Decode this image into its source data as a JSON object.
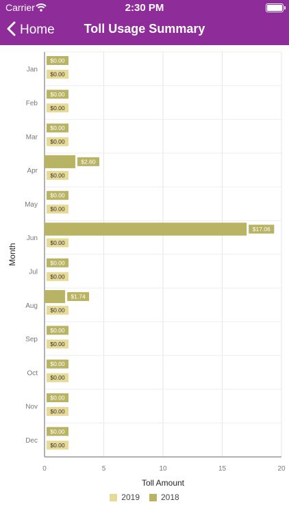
{
  "status_bar": {
    "carrier": "Carrier",
    "time": "2:30 PM"
  },
  "nav": {
    "back_label": "Home",
    "title": "Toll Usage Summary"
  },
  "colors": {
    "header": "#8e2c9a",
    "series_2019": "#e6da96",
    "series_2018": "#b9b464"
  },
  "icons": [
    "chevron-left-icon",
    "wifi-icon",
    "battery-icon"
  ],
  "chart_data": {
    "type": "bar",
    "orientation": "horizontal",
    "categories": [
      "Jan",
      "Feb",
      "Mar",
      "Apr",
      "May",
      "Jun",
      "Jul",
      "Aug",
      "Sep",
      "Oct",
      "Nov",
      "Dec"
    ],
    "series": [
      {
        "name": "2019",
        "values": [
          0,
          0,
          0,
          0,
          0,
          0,
          0,
          0,
          0,
          0,
          0,
          0
        ],
        "labels": [
          "$0.00",
          "$0.00",
          "$0.00",
          "$0.00",
          "$0.00",
          "$0.00",
          "$0.00",
          "$0.00",
          "$0.00",
          "$0.00",
          "$0.00",
          "$0.00"
        ]
      },
      {
        "name": "2018",
        "values": [
          0,
          0,
          0,
          2.6,
          0,
          17.06,
          0,
          1.74,
          0,
          0,
          0,
          0
        ],
        "labels": [
          "$0.00",
          "$0.00",
          "$0.00",
          "$2.60",
          "$0.00",
          "$17.06",
          "$0.00",
          "$1.74",
          "$0.00",
          "$0.00",
          "$0.00",
          "$0.00"
        ]
      }
    ],
    "xlabel": "Toll Amount",
    "ylabel": "Month",
    "xlim": [
      0,
      20
    ],
    "xticks": [
      "0",
      "5",
      "10",
      "15",
      "20"
    ],
    "grid": true,
    "legend": "bottom"
  }
}
